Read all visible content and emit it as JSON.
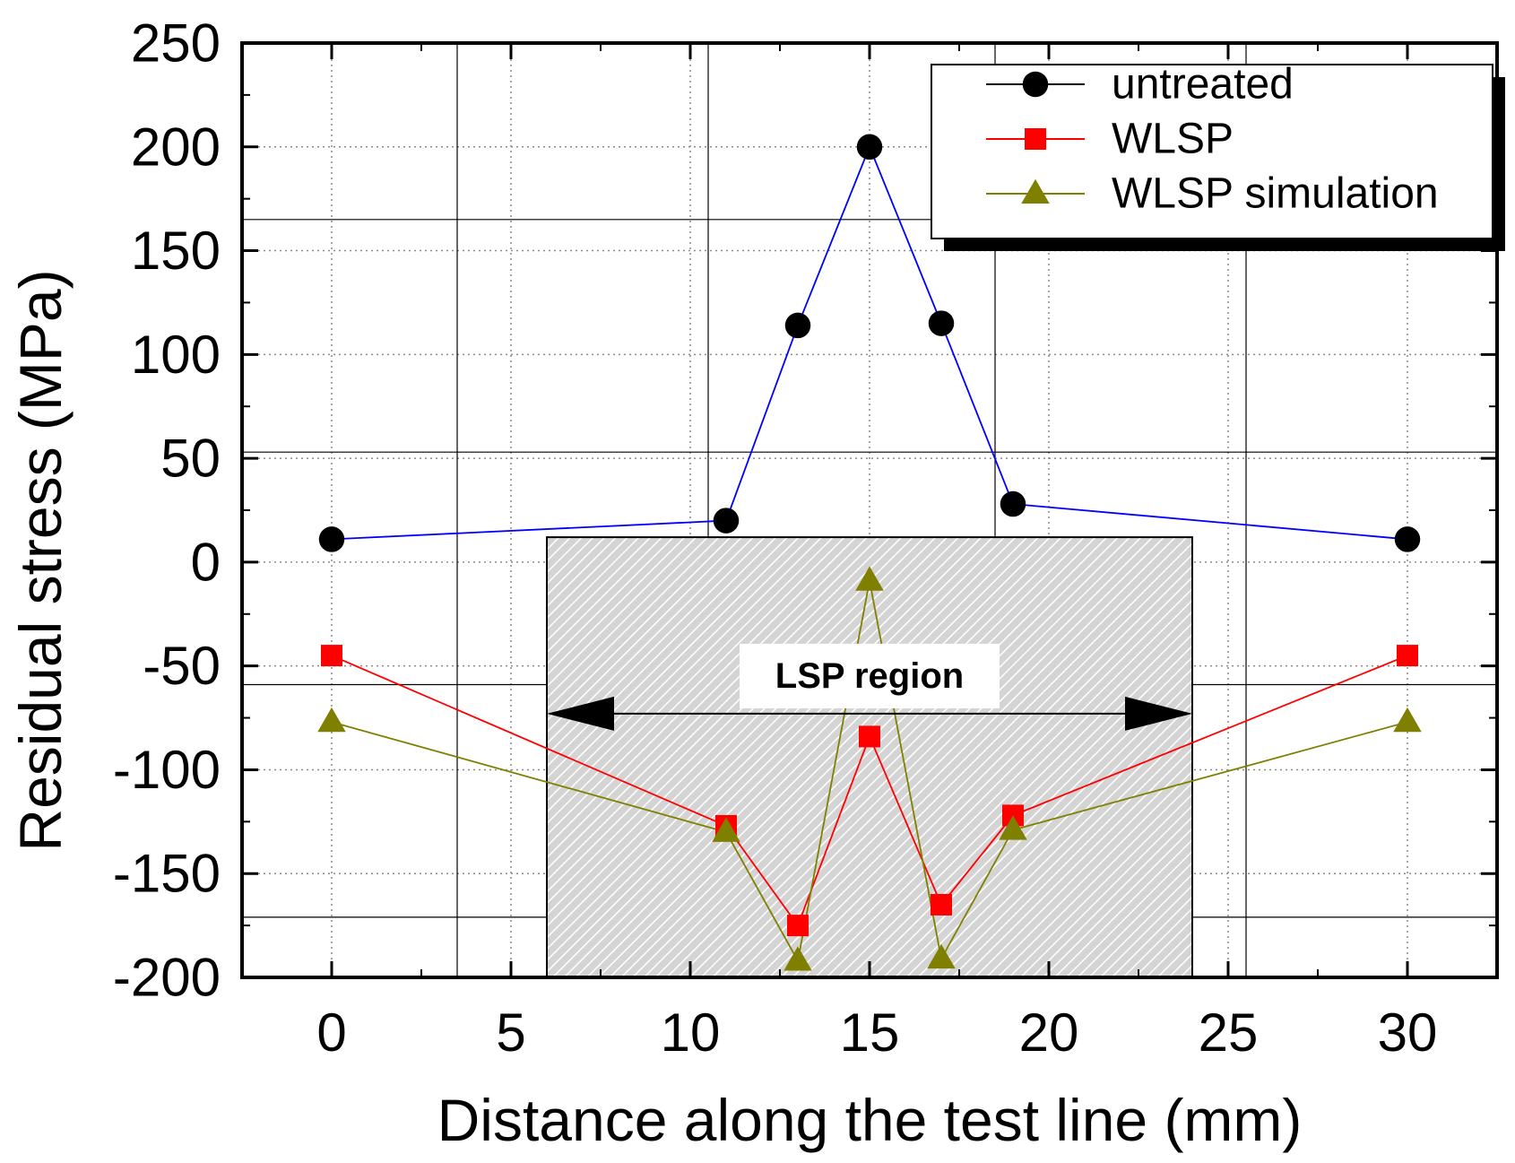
{
  "chart_data": {
    "type": "line",
    "title": "",
    "xlabel": "Distance along the test line (mm)",
    "ylabel": "Residual stress (MPa)",
    "xlim": [
      -2.5,
      32.5
    ],
    "ylim": [
      -200,
      250
    ],
    "xticks": [
      0,
      5,
      10,
      15,
      20,
      25,
      30
    ],
    "yticks": [
      250,
      200,
      150,
      100,
      50,
      0,
      -50,
      -100,
      -150,
      -200
    ],
    "x_tick_labels": [
      "0",
      "5",
      "10",
      "15",
      "20",
      "25",
      "30"
    ],
    "y_tick_labels": [
      "250",
      "200",
      "150",
      "100",
      "50",
      "0",
      "-50",
      "-100",
      "-150",
      "-200"
    ],
    "series": [
      {
        "name": "untreated",
        "marker": "circle",
        "marker_color": "#000000",
        "line_color": "#0000ff",
        "x": [
          0,
          11,
          13,
          15,
          17,
          19,
          30
        ],
        "values": [
          11,
          20,
          114,
          200,
          115,
          28,
          11
        ]
      },
      {
        "name": "WLSP",
        "marker": "square",
        "marker_color": "#ff0000",
        "line_color": "#ff0000",
        "x": [
          0,
          11,
          13,
          15,
          17,
          19,
          30
        ],
        "values": [
          -45,
          -127,
          -175,
          -84,
          -165,
          -122,
          -45
        ]
      },
      {
        "name": "WLSP simulation",
        "marker": "triangle",
        "marker_color": "#808000",
        "line_color": "#808000",
        "x": [
          0,
          11,
          13,
          15,
          17,
          19,
          30
        ],
        "values": [
          -77,
          -130,
          -192,
          -9,
          -191,
          -129,
          -77
        ]
      }
    ],
    "legend_position": "top-right",
    "region": {
      "label": "LSP region",
      "x_start": 6,
      "x_end": 24,
      "y_top": 12,
      "y_bottom": -200,
      "arrow_y": -73
    }
  }
}
